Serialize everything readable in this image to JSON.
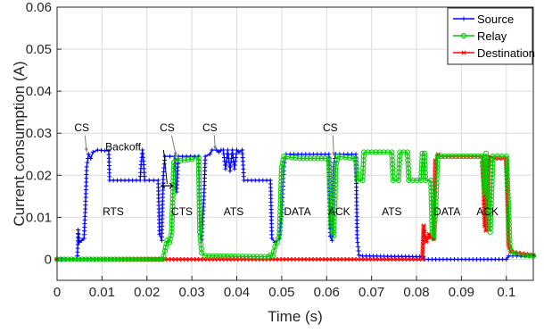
{
  "chart_data": {
    "type": "line",
    "xlabel": "Time (s)",
    "ylabel": "Current consumption (A)",
    "xlim": [
      0,
      0.106
    ],
    "ylim": [
      -0.005,
      0.06
    ],
    "x_ticks": [
      "0",
      "0.01",
      "0.02",
      "0.03",
      "0.04",
      "0.05",
      "0.06",
      "0.07",
      "0.08",
      "0.09",
      "0.1"
    ],
    "y_ticks": [
      "0",
      "0.01",
      "0.02",
      "0.03",
      "0.04",
      "0.05",
      "0.06"
    ],
    "grid": true,
    "legend_position": "top-right",
    "series": [
      {
        "name": "Source",
        "color": "#0000ff",
        "marker": "plus",
        "points": [
          [
            0,
            0
          ],
          [
            0.0045,
            0
          ],
          [
            0.0047,
            0.007
          ],
          [
            0.0049,
            0.004
          ],
          [
            0.0055,
            0.0045
          ],
          [
            0.006,
            0.005
          ],
          [
            0.0063,
            0.012
          ],
          [
            0.0066,
            0.022
          ],
          [
            0.007,
            0.025
          ],
          [
            0.0075,
            0.024
          ],
          [
            0.008,
            0.0255
          ],
          [
            0.009,
            0.026
          ],
          [
            0.0115,
            0.0258
          ],
          [
            0.0117,
            0.0188
          ],
          [
            0.0185,
            0.0188
          ],
          [
            0.0187,
            0.0225
          ],
          [
            0.019,
            0.026
          ],
          [
            0.0193,
            0.0225
          ],
          [
            0.0195,
            0.0188
          ],
          [
            0.0225,
            0.0188
          ],
          [
            0.0228,
            0.006
          ],
          [
            0.0233,
            0.0045
          ],
          [
            0.0236,
            0.019
          ],
          [
            0.024,
            0.0245
          ],
          [
            0.0262,
            0.0245
          ],
          [
            0.0264,
            0.017
          ],
          [
            0.0266,
            0.016
          ],
          [
            0.027,
            0.0245
          ],
          [
            0.0315,
            0.0245
          ],
          [
            0.0318,
            0.006
          ],
          [
            0.0322,
            0.0048
          ],
          [
            0.0327,
            0.015
          ],
          [
            0.033,
            0.0245
          ],
          [
            0.034,
            0.025
          ],
          [
            0.0345,
            0.026
          ],
          [
            0.0355,
            0.026
          ],
          [
            0.036,
            0.0255
          ],
          [
            0.0365,
            0.026
          ],
          [
            0.037,
            0.026
          ],
          [
            0.0375,
            0.0215
          ],
          [
            0.038,
            0.026
          ],
          [
            0.0385,
            0.021
          ],
          [
            0.039,
            0.026
          ],
          [
            0.0395,
            0.0215
          ],
          [
            0.04,
            0.026
          ],
          [
            0.0405,
            0.0255
          ],
          [
            0.0412,
            0.026
          ],
          [
            0.0416,
            0.0188
          ],
          [
            0.0475,
            0.0188
          ],
          [
            0.0478,
            0.005
          ],
          [
            0.0485,
            0.004
          ],
          [
            0.0495,
            0.005
          ],
          [
            0.05,
            0.011
          ],
          [
            0.0505,
            0.022
          ],
          [
            0.051,
            0.025
          ],
          [
            0.0605,
            0.025
          ],
          [
            0.0608,
            0.0055
          ],
          [
            0.0612,
            0.0045
          ],
          [
            0.0615,
            0.022
          ],
          [
            0.062,
            0.025
          ],
          [
            0.0665,
            0.025
          ],
          [
            0.0668,
            0.005
          ],
          [
            0.0672,
            0.001
          ],
          [
            0.068,
            0.0008
          ],
          [
            0.0815,
            0.0006
          ],
          [
            0.0818,
            0
          ],
          [
            0.1,
            0
          ],
          [
            0.1005,
            0.0008
          ],
          [
            0.106,
            0.0008
          ]
        ]
      },
      {
        "name": "Relay",
        "color": "#00cc00",
        "marker": "circle",
        "points": [
          [
            0,
            0
          ],
          [
            0.0235,
            0
          ],
          [
            0.0237,
            0.0008
          ],
          [
            0.024,
            0.002
          ],
          [
            0.0245,
            0.0045
          ],
          [
            0.025,
            0.004
          ],
          [
            0.0255,
            0.0065
          ],
          [
            0.026,
            0.023
          ],
          [
            0.0265,
            0.024
          ],
          [
            0.0275,
            0.0235
          ],
          [
            0.03,
            0.0238
          ],
          [
            0.0315,
            0.0242
          ],
          [
            0.0318,
            0.0065
          ],
          [
            0.0322,
            0.0015
          ],
          [
            0.033,
            0.0008
          ],
          [
            0.047,
            0.0006
          ],
          [
            0.0475,
            0.001
          ],
          [
            0.048,
            0.0008
          ],
          [
            0.0485,
            0.003
          ],
          [
            0.049,
            0.004
          ],
          [
            0.0495,
            0.006
          ],
          [
            0.0498,
            0.015
          ],
          [
            0.05,
            0.022
          ],
          [
            0.0505,
            0.0245
          ],
          [
            0.054,
            0.024
          ],
          [
            0.0605,
            0.024
          ],
          [
            0.0607,
            0.017
          ],
          [
            0.061,
            0.0075
          ],
          [
            0.0615,
            0.0055
          ],
          [
            0.0618,
            0.0125
          ],
          [
            0.062,
            0.022
          ],
          [
            0.0625,
            0.0245
          ],
          [
            0.066,
            0.024
          ],
          [
            0.0665,
            0.024
          ],
          [
            0.0668,
            0.0188
          ],
          [
            0.068,
            0.0188
          ],
          [
            0.0683,
            0.0255
          ],
          [
            0.0745,
            0.0255
          ],
          [
            0.0748,
            0.0188
          ],
          [
            0.076,
            0.0188
          ],
          [
            0.0763,
            0.0255
          ],
          [
            0.078,
            0.0255
          ],
          [
            0.0783,
            0.0188
          ],
          [
            0.081,
            0.0188
          ],
          [
            0.0813,
            0.0252
          ],
          [
            0.0818,
            0.0252
          ],
          [
            0.082,
            0.0188
          ],
          [
            0.0832,
            0.0188
          ],
          [
            0.0835,
            0.0065
          ],
          [
            0.0838,
            0.005
          ],
          [
            0.0842,
            0.011
          ],
          [
            0.0847,
            0.0245
          ],
          [
            0.0945,
            0.0245
          ],
          [
            0.0947,
            0.023
          ],
          [
            0.0952,
            0.0152
          ],
          [
            0.0955,
            0.0252
          ],
          [
            0.0958,
            0.023
          ],
          [
            0.096,
            0.0078
          ],
          [
            0.0964,
            0.0065
          ],
          [
            0.097,
            0.0245
          ],
          [
            0.1,
            0.0245
          ],
          [
            0.1005,
            0.012
          ],
          [
            0.1008,
            0.0028
          ],
          [
            0.1015,
            0.0012
          ],
          [
            0.106,
            0.0008
          ]
        ]
      },
      {
        "name": "Destination",
        "color": "#ff0000",
        "marker": "asterisk",
        "points": [
          [
            0,
            0
          ],
          [
            0.0813,
            0
          ],
          [
            0.0816,
            0.008
          ],
          [
            0.0818,
            0.0055
          ],
          [
            0.0822,
            0.0042
          ],
          [
            0.0828,
            0.006
          ],
          [
            0.0833,
            0.0052
          ],
          [
            0.0838,
            0.0048
          ],
          [
            0.0842,
            0.0235
          ],
          [
            0.0848,
            0.025
          ],
          [
            0.0855,
            0.0245
          ],
          [
            0.0945,
            0.0245
          ],
          [
            0.0948,
            0.0235
          ],
          [
            0.0952,
            0.008
          ],
          [
            0.0955,
            0.0068
          ],
          [
            0.0958,
            0.02
          ],
          [
            0.0963,
            0.0245
          ],
          [
            0.0975,
            0.024
          ],
          [
            0.1,
            0.024
          ],
          [
            0.1005,
            0.0035
          ],
          [
            0.101,
            0.0018
          ],
          [
            0.106,
            0.001
          ]
        ]
      }
    ],
    "annotations": [
      {
        "text": "CS",
        "x": 0.0055,
        "y": 0.0305
      },
      {
        "text": "CS",
        "x": 0.0245,
        "y": 0.0305
      },
      {
        "text": "CS",
        "x": 0.034,
        "y": 0.0305
      },
      {
        "text": "CS",
        "x": 0.0608,
        "y": 0.0305
      },
      {
        "text": "Backoff",
        "x": 0.0147,
        "y": 0.0259
      },
      {
        "text": "RTS",
        "x": 0.0125,
        "y": 0.0105
      },
      {
        "text": "CTS",
        "x": 0.0278,
        "y": 0.0105
      },
      {
        "text": "ATS",
        "x": 0.0393,
        "y": 0.0105
      },
      {
        "text": "DATA",
        "x": 0.0535,
        "y": 0.0105
      },
      {
        "text": "ACK",
        "x": 0.0628,
        "y": 0.0105
      },
      {
        "text": "ATS",
        "x": 0.0745,
        "y": 0.0105
      },
      {
        "text": "DATA",
        "x": 0.0868,
        "y": 0.0105
      },
      {
        "text": "ACK",
        "x": 0.0958,
        "y": 0.0105
      }
    ],
    "arrows": [
      {
        "from": [
          0.0062,
          0.0295
        ],
        "to": [
          0.0066,
          0.0255
        ]
      },
      {
        "from": [
          0.0255,
          0.0295
        ],
        "to": [
          0.0265,
          0.0245
        ]
      },
      {
        "from": [
          0.035,
          0.0295
        ],
        "to": [
          0.0352,
          0.026
        ]
      },
      {
        "from": [
          0.0614,
          0.0295
        ],
        "to": [
          0.0616,
          0.0245
        ]
      }
    ],
    "backoff_marker": {
      "x_start": 0.0232,
      "x_end": 0.0258,
      "y": 0.0175
    }
  }
}
